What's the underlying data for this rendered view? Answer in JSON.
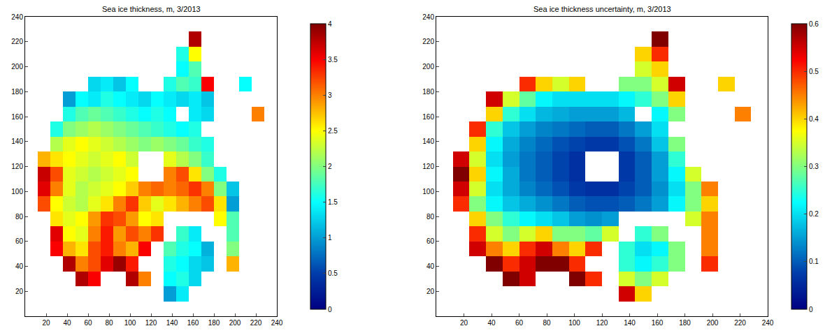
{
  "chart_data": [
    {
      "type": "heatmap",
      "title": "Sea ice thickness, m, 3/2013",
      "x": [
        6,
        18,
        30,
        42,
        54,
        66,
        78,
        90,
        102,
        114,
        126,
        138,
        150,
        162,
        174,
        186,
        198,
        210,
        222,
        234
      ],
      "y": [
        6,
        18,
        30,
        42,
        54,
        66,
        78,
        90,
        102,
        114,
        126,
        138,
        150,
        162,
        174,
        186,
        198,
        210,
        222,
        234
      ],
      "z": [
        [
          null,
          null,
          null,
          null,
          null,
          null,
          null,
          null,
          null,
          null,
          null,
          null,
          null,
          null,
          null,
          null,
          null,
          null,
          null,
          null
        ],
        [
          null,
          null,
          null,
          null,
          null,
          null,
          null,
          null,
          null,
          null,
          null,
          1.0,
          1.4,
          null,
          null,
          null,
          null,
          null,
          null,
          null
        ],
        [
          null,
          null,
          null,
          null,
          3.8,
          3.5,
          null,
          null,
          3.8,
          3.0,
          null,
          1.5,
          1.6,
          1.3,
          null,
          null,
          null,
          null,
          null,
          null
        ],
        [
          null,
          null,
          null,
          3.8,
          3.0,
          3.2,
          3.6,
          3.9,
          3.4,
          null,
          null,
          1.6,
          1.5,
          1.3,
          1.2,
          null,
          2.8,
          null,
          null,
          null
        ],
        [
          null,
          null,
          3.5,
          2.8,
          2.6,
          3.2,
          3.4,
          3.0,
          2.8,
          3.5,
          null,
          1.8,
          1.6,
          1.5,
          1.1,
          null,
          2.0,
          null,
          null,
          null
        ],
        [
          null,
          null,
          3.6,
          2.5,
          2.4,
          3.0,
          3.4,
          2.9,
          3.2,
          3.0,
          3.3,
          null,
          1.7,
          1.4,
          null,
          null,
          1.8,
          null,
          null,
          null
        ],
        [
          null,
          null,
          2.6,
          2.4,
          2.5,
          2.9,
          3.3,
          3.2,
          2.9,
          2.5,
          2.6,
          null,
          null,
          null,
          null,
          2.5,
          1.8,
          null,
          null,
          null
        ],
        [
          null,
          3.2,
          2.5,
          2.3,
          2.2,
          2.4,
          2.6,
          3.0,
          3.3,
          2.7,
          2.4,
          2.6,
          2.8,
          3.0,
          3.2,
          2.6,
          1.0,
          null,
          null,
          null
        ],
        [
          null,
          3.6,
          3.0,
          2.4,
          2.2,
          2.3,
          2.4,
          2.5,
          2.7,
          3.0,
          3.1,
          3.0,
          3.1,
          3.3,
          3.0,
          2.0,
          1.2,
          null,
          null,
          null
        ],
        [
          null,
          3.7,
          3.2,
          2.4,
          2.3,
          2.2,
          2.3,
          2.4,
          2.5,
          null,
          null,
          3.0,
          3.2,
          2.6,
          2.0,
          1.6,
          null,
          null,
          null,
          null
        ],
        [
          null,
          2.8,
          2.6,
          2.5,
          2.4,
          2.3,
          2.4,
          2.5,
          2.3,
          null,
          null,
          2.4,
          2.2,
          2.0,
          1.7,
          null,
          null,
          null,
          null,
          null
        ],
        [
          null,
          null,
          2.2,
          2.4,
          2.5,
          2.4,
          2.3,
          2.2,
          2.1,
          2.0,
          2.1,
          2.0,
          1.9,
          1.7,
          1.6,
          null,
          null,
          null,
          null,
          null
        ],
        [
          null,
          null,
          1.6,
          2.0,
          2.1,
          2.2,
          2.1,
          2.0,
          1.9,
          1.8,
          1.7,
          1.6,
          1.5,
          1.6,
          null,
          null,
          null,
          null,
          null,
          null
        ],
        [
          null,
          null,
          null,
          1.6,
          1.8,
          1.9,
          1.8,
          1.7,
          1.6,
          1.5,
          1.6,
          1.5,
          null,
          1.4,
          1.3,
          null,
          null,
          null,
          3.0,
          null
        ],
        [
          null,
          null,
          null,
          1.0,
          1.5,
          1.4,
          1.6,
          1.5,
          1.4,
          1.3,
          1.5,
          1.4,
          1.3,
          1.4,
          1.2,
          null,
          null,
          null,
          null,
          null
        ],
        [
          null,
          null,
          null,
          null,
          null,
          1.3,
          1.4,
          1.2,
          1.5,
          null,
          null,
          1.6,
          1.8,
          1.7,
          3.5,
          null,
          null,
          1.5,
          null,
          null
        ],
        [
          null,
          null,
          null,
          null,
          null,
          null,
          null,
          null,
          null,
          null,
          null,
          null,
          1.5,
          1.8,
          null,
          null,
          null,
          null,
          null,
          null
        ],
        [
          null,
          null,
          null,
          null,
          null,
          null,
          null,
          null,
          null,
          null,
          null,
          null,
          1.6,
          2.5,
          null,
          null,
          null,
          null,
          null,
          null
        ],
        [
          null,
          null,
          null,
          null,
          null,
          null,
          null,
          null,
          null,
          null,
          null,
          null,
          null,
          3.8,
          null,
          null,
          null,
          null,
          null,
          null
        ],
        [
          null,
          null,
          null,
          null,
          null,
          null,
          null,
          null,
          null,
          null,
          null,
          null,
          null,
          null,
          null,
          null,
          null,
          null,
          null,
          null
        ]
      ],
      "xlim": [
        0,
        240
      ],
      "ylim": [
        0,
        240
      ],
      "xticks": [
        20,
        40,
        60,
        80,
        100,
        120,
        140,
        160,
        180,
        200,
        220,
        240
      ],
      "yticks": [
        20,
        40,
        60,
        80,
        100,
        120,
        140,
        160,
        180,
        200,
        220,
        240
      ],
      "colorbar": {
        "range": [
          0,
          4
        ],
        "ticks": [
          0,
          0.5,
          1,
          1.5,
          2,
          2.5,
          3,
          3.5,
          4
        ]
      }
    },
    {
      "type": "heatmap",
      "title": "Sea ice thickness uncertainty, m, 3/2013",
      "x": [
        6,
        18,
        30,
        42,
        54,
        66,
        78,
        90,
        102,
        114,
        126,
        138,
        150,
        162,
        174,
        186,
        198,
        210,
        222,
        234
      ],
      "y": [
        6,
        18,
        30,
        42,
        54,
        66,
        78,
        90,
        102,
        114,
        126,
        138,
        150,
        162,
        174,
        186,
        198,
        210,
        222,
        234
      ],
      "z": [
        [
          null,
          null,
          null,
          null,
          null,
          null,
          null,
          null,
          null,
          null,
          null,
          null,
          null,
          null,
          null,
          null,
          null,
          null,
          null,
          null
        ],
        [
          null,
          null,
          null,
          null,
          null,
          null,
          null,
          null,
          null,
          null,
          null,
          0.55,
          0.4,
          null,
          null,
          null,
          null,
          null,
          null,
          null
        ],
        [
          null,
          null,
          null,
          null,
          0.6,
          0.55,
          null,
          null,
          0.6,
          0.5,
          null,
          0.35,
          0.3,
          0.35,
          null,
          null,
          null,
          null,
          null,
          null
        ],
        [
          null,
          null,
          null,
          0.6,
          0.5,
          0.55,
          0.6,
          0.6,
          0.5,
          null,
          null,
          0.25,
          0.22,
          0.25,
          0.3,
          null,
          0.5,
          null,
          null,
          null
        ],
        [
          null,
          null,
          0.55,
          0.45,
          0.4,
          0.5,
          0.55,
          0.45,
          0.4,
          0.5,
          null,
          0.25,
          0.2,
          0.22,
          0.3,
          null,
          0.45,
          null,
          null,
          null
        ],
        [
          null,
          null,
          0.5,
          0.35,
          0.3,
          0.35,
          0.4,
          0.3,
          0.3,
          0.28,
          0.35,
          null,
          0.25,
          0.3,
          null,
          null,
          0.45,
          null,
          null,
          null
        ],
        [
          null,
          null,
          0.4,
          0.3,
          0.25,
          0.22,
          0.2,
          0.18,
          0.15,
          0.14,
          0.15,
          null,
          null,
          null,
          null,
          0.35,
          0.45,
          null,
          null,
          null
        ],
        [
          null,
          0.5,
          0.3,
          0.22,
          0.18,
          0.16,
          0.14,
          0.12,
          0.1,
          0.09,
          0.09,
          0.1,
          0.12,
          0.15,
          0.22,
          0.3,
          0.4,
          null,
          null,
          null
        ],
        [
          null,
          0.55,
          0.35,
          0.2,
          0.16,
          0.13,
          0.11,
          0.09,
          0.07,
          0.06,
          0.06,
          0.08,
          0.1,
          0.14,
          0.2,
          0.3,
          0.45,
          null,
          null,
          null
        ],
        [
          null,
          0.6,
          0.4,
          0.22,
          0.16,
          0.12,
          0.1,
          0.08,
          0.06,
          null,
          null,
          0.07,
          0.1,
          0.15,
          0.22,
          0.35,
          null,
          null,
          null,
          null
        ],
        [
          null,
          0.55,
          0.35,
          0.2,
          0.15,
          0.12,
          0.1,
          0.08,
          0.06,
          null,
          null,
          0.07,
          0.1,
          0.15,
          0.25,
          null,
          null,
          null,
          null,
          null
        ],
        [
          null,
          null,
          0.4,
          0.22,
          0.16,
          0.13,
          0.11,
          0.09,
          0.08,
          0.07,
          0.07,
          0.09,
          0.12,
          0.18,
          0.3,
          null,
          null,
          null,
          null,
          null
        ],
        [
          null,
          null,
          0.5,
          0.25,
          0.18,
          0.15,
          0.13,
          0.12,
          0.11,
          0.1,
          0.1,
          0.12,
          0.15,
          0.2,
          null,
          null,
          null,
          null,
          null,
          null
        ],
        [
          null,
          null,
          null,
          0.4,
          0.25,
          0.2,
          0.17,
          0.16,
          0.15,
          0.15,
          0.15,
          0.17,
          null,
          0.22,
          0.3,
          null,
          null,
          null,
          0.45,
          null
        ],
        [
          null,
          null,
          null,
          0.55,
          0.35,
          0.28,
          0.22,
          0.2,
          0.2,
          0.2,
          0.2,
          0.22,
          0.25,
          0.3,
          0.4,
          null,
          null,
          null,
          null,
          null
        ],
        [
          null,
          null,
          null,
          null,
          null,
          0.5,
          0.4,
          0.35,
          0.4,
          null,
          null,
          0.3,
          0.3,
          0.35,
          0.55,
          null,
          null,
          0.4,
          null,
          null
        ],
        [
          null,
          null,
          null,
          null,
          null,
          null,
          null,
          null,
          null,
          null,
          null,
          null,
          0.35,
          0.4,
          null,
          null,
          null,
          null,
          null,
          null
        ],
        [
          null,
          null,
          null,
          null,
          null,
          null,
          null,
          null,
          null,
          null,
          null,
          null,
          0.4,
          0.5,
          null,
          null,
          null,
          null,
          null,
          null
        ],
        [
          null,
          null,
          null,
          null,
          null,
          null,
          null,
          null,
          null,
          null,
          null,
          null,
          null,
          0.6,
          null,
          null,
          null,
          null,
          null,
          null
        ],
        [
          null,
          null,
          null,
          null,
          null,
          null,
          null,
          null,
          null,
          null,
          null,
          null,
          null,
          null,
          null,
          null,
          null,
          null,
          null,
          null
        ]
      ],
      "xlim": [
        0,
        240
      ],
      "ylim": [
        0,
        240
      ],
      "xticks": [
        20,
        40,
        60,
        80,
        100,
        120,
        140,
        160,
        180,
        200,
        220,
        240
      ],
      "yticks": [
        20,
        40,
        60,
        80,
        100,
        120,
        140,
        160,
        180,
        200,
        220,
        240
      ],
      "colorbar": {
        "range": [
          0,
          0.6
        ],
        "ticks": [
          0,
          0.1,
          0.2,
          0.3,
          0.4,
          0.5,
          0.6
        ]
      }
    }
  ]
}
